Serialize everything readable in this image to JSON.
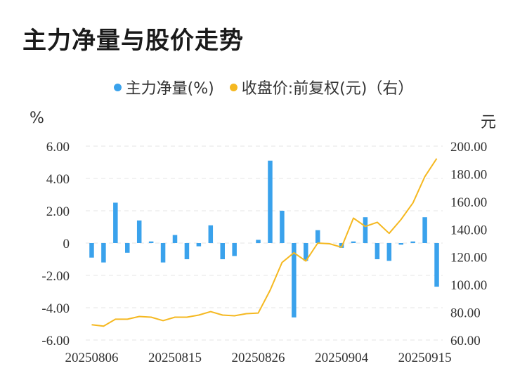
{
  "title": "主力净量与股价走势",
  "legend": {
    "bar_label": "主力净量(%)",
    "line_label": "收盘价:前复权(元)（右）"
  },
  "units": {
    "left": "%",
    "right": "元"
  },
  "colors": {
    "bar": "#3aa2ec",
    "line": "#f5b820",
    "grid": "#e6e6e6"
  },
  "chart_data": {
    "type": "bar+line",
    "x": [
      "20250806",
      "20250807",
      "20250808",
      "20250811",
      "20250812",
      "20250813",
      "20250814",
      "20250815",
      "20250818",
      "20250819",
      "20250820",
      "20250821",
      "20250822",
      "20250825",
      "20250826",
      "20250827",
      "20250828",
      "20250829",
      "20250901",
      "20250902",
      "20250903",
      "20250904",
      "20250905",
      "20250908",
      "20250909",
      "20250910",
      "20250911",
      "20250912",
      "20250915",
      "20250916"
    ],
    "x_tick_labels": [
      "20250806",
      "20250815",
      "20250826",
      "20250904",
      "20250915"
    ],
    "series": [
      {
        "name": "主力净量(%)",
        "type": "bar",
        "axis": "left",
        "values": [
          -0.9,
          -1.2,
          2.5,
          -0.6,
          1.4,
          0.1,
          -1.2,
          0.5,
          -1.0,
          -0.2,
          1.1,
          -1.0,
          -0.8,
          0.0,
          0.2,
          5.1,
          2.0,
          -4.6,
          -1.1,
          0.8,
          0.0,
          -0.3,
          0.1,
          1.6,
          -1.0,
          -1.1,
          -0.1,
          0.1,
          1.6,
          -2.7
        ]
      },
      {
        "name": "收盘价:前复权(元)（右）",
        "type": "line",
        "axis": "right",
        "values": [
          71,
          70,
          75,
          75,
          77,
          76.5,
          74,
          76.5,
          76.5,
          78,
          80.5,
          78,
          77.5,
          79,
          79.5,
          96,
          116,
          123,
          117,
          130,
          129.5,
          127,
          148,
          142,
          145,
          137,
          147,
          159,
          178,
          191
        ]
      }
    ],
    "y_left": {
      "min": -6,
      "max": 6,
      "ticks": [
        "6.00",
        "4.00",
        "2.00",
        "0",
        "-2.00",
        "-4.00",
        "-6.00"
      ]
    },
    "y_right": {
      "min": 60,
      "max": 200,
      "ticks": [
        "200.00",
        "180.00",
        "160.00",
        "140.00",
        "120.00",
        "100.00",
        "80.00",
        "60.00"
      ]
    },
    "grid": true,
    "legend_position": "top-center"
  }
}
